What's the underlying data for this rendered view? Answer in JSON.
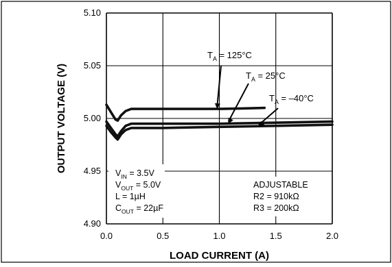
{
  "chart_data": {
    "type": "line",
    "title": "",
    "xlabel": "LOAD CURRENT (A)",
    "ylabel": "OUTPUT VOLTAGE (V)",
    "xlim": [
      0.0,
      2.0
    ],
    "ylim": [
      4.9,
      5.1
    ],
    "xticks": [
      "0.0",
      "0.5",
      "1.0",
      "1.5",
      "2.0"
    ],
    "yticks": [
      "4.90",
      "4.95",
      "5.00",
      "5.05",
      "5.10"
    ],
    "grid": true,
    "series": [
      {
        "name": "TA = 125°C",
        "x": [
          0.0,
          0.04,
          0.08,
          0.1,
          0.13,
          0.17,
          0.22,
          0.3,
          0.5,
          0.8,
          1.0,
          1.2,
          1.4
        ],
        "y": [
          5.013,
          5.006,
          4.999,
          4.998,
          5.003,
          5.007,
          5.009,
          5.009,
          5.009,
          5.009,
          5.009,
          5.0095,
          5.01
        ]
      },
      {
        "name": "TA = 25°C",
        "x": [
          0.0,
          0.04,
          0.08,
          0.1,
          0.13,
          0.17,
          0.22,
          0.3,
          0.5,
          1.0,
          1.5,
          2.0
        ],
        "y": [
          4.997,
          4.991,
          4.985,
          4.983,
          4.988,
          4.993,
          4.995,
          4.995,
          4.995,
          4.995,
          4.996,
          4.997
        ]
      },
      {
        "name": "TA = -40°C",
        "x": [
          0.0,
          0.04,
          0.08,
          0.1,
          0.13,
          0.17,
          0.22,
          0.3,
          0.5,
          1.0,
          1.5,
          2.0
        ],
        "y": [
          4.993,
          4.987,
          4.982,
          4.98,
          4.985,
          4.989,
          4.991,
          4.991,
          4.991,
          4.992,
          4.993,
          4.994
        ]
      }
    ],
    "curve_labels": [
      {
        "main": "T",
        "sub": "A",
        "rest": " = 125°C"
      },
      {
        "main": "T",
        "sub": "A",
        "rest": " = 25°C"
      },
      {
        "main": "T",
        "sub": "A",
        "rest": " = –40°C"
      }
    ],
    "conditions": [
      {
        "main": "V",
        "sub": "IN",
        "rest": " = 3.5V"
      },
      {
        "main": "V",
        "sub": "OUT",
        "rest": " = 5.0V"
      },
      {
        "main": "L = 1µH",
        "sub": "",
        "rest": ""
      },
      {
        "main": "C",
        "sub": "OUT",
        "rest": " = 22µF"
      }
    ],
    "notes": [
      "ADJUSTABLE",
      "R2 = 910kΩ",
      "R3 = 200kΩ"
    ]
  }
}
